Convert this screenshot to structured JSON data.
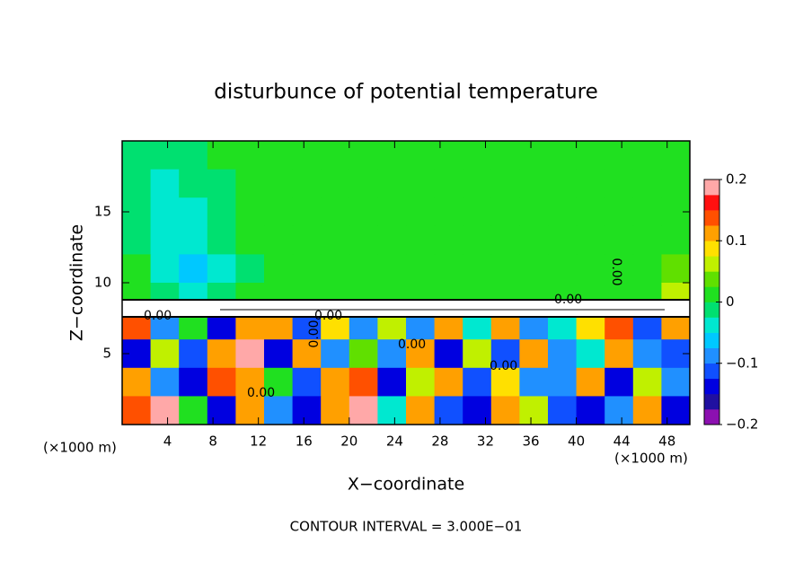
{
  "chart_data": {
    "type": "contour",
    "title": "disturbunce of potential temperature",
    "xlabel": "X−coordinate",
    "ylabel": "Z−coordinate",
    "xunit_left": "(×1000 m)",
    "xunit_right": "(×1000 m)",
    "footer": "CONTOUR INTERVAL = 3.000E−01",
    "annotations": [
      "0.00",
      "0.00",
      "0.00",
      "0.00",
      "0.00",
      "0.00",
      "0.00",
      "0.00"
    ],
    "xlim": [
      0,
      50
    ],
    "ylim": [
      0,
      20
    ],
    "xticks": [
      4,
      8,
      12,
      16,
      20,
      24,
      28,
      32,
      36,
      40,
      44,
      48
    ],
    "yticks": [
      5,
      10,
      15
    ],
    "clim": [
      -0.2,
      0.2
    ],
    "cticks": [
      {
        "value": 0.2,
        "label": "0.2"
      },
      {
        "value": 0.1,
        "label": "0.1"
      },
      0,
      {
        "value": -0.1,
        "label": "−0.1"
      },
      {
        "value": -0.2,
        "label": "−0.2"
      }
    ],
    "colors": [
      "#8c10b0",
      "#2010a0",
      "#0000e0",
      "#1050ff",
      "#2090ff",
      "#00c8ff",
      "#00e8d0",
      "#00e070",
      "#20e020",
      "#60e000",
      "#c0f000",
      "#ffe000",
      "#ffa000",
      "#ff5000",
      "#ff1010",
      "#ffa8a8"
    ],
    "z": [
      [
        -0.01,
        -0.02,
        -0.01,
        0,
        0,
        0,
        0.01,
        0.01,
        0.01,
        0.01,
        0.01,
        0.015,
        0.01,
        0.01,
        0.01,
        0.01,
        0.01,
        0.01,
        0.01,
        0.01
      ],
      [
        -0.02,
        -0.03,
        -0.02,
        -0.01,
        0,
        0,
        0.01,
        0.01,
        0.01,
        0.01,
        0.015,
        0.015,
        0.01,
        0.01,
        0.01,
        0.01,
        0.01,
        0.01,
        0.01,
        0.01
      ],
      [
        -0.02,
        -0.03,
        -0.03,
        -0.02,
        0,
        0,
        0.01,
        0.01,
        0.01,
        0.01,
        0.015,
        0.02,
        0.015,
        0.01,
        0.01,
        0.01,
        0.01,
        0.01,
        0.015,
        0.01
      ],
      [
        -0.01,
        -0.03,
        -0.03,
        -0.02,
        0,
        0,
        0,
        0.01,
        0.01,
        0.01,
        0.015,
        0.02,
        0.015,
        0.01,
        0.01,
        0.01,
        0.01,
        0,
        0.02,
        0.01
      ],
      [
        0,
        -0.03,
        -0.06,
        -0.03,
        -0.01,
        0,
        0,
        0.01,
        0.01,
        0.01,
        0.01,
        0.02,
        0.015,
        0.01,
        0.01,
        0.01,
        0,
        0,
        0.02,
        0.03
      ],
      [
        0,
        -0.02,
        -0.05,
        -0.02,
        0,
        0,
        0,
        0.01,
        0.01,
        0.01,
        0.01,
        0.01,
        0.01,
        0.01,
        0.01,
        0.01,
        0,
        0,
        0.01,
        0.05
      ],
      [
        0.15,
        -0.1,
        0.02,
        -0.15,
        0.12,
        0.1,
        -0.12,
        0.08,
        -0.1,
        0.05,
        -0.08,
        0.1,
        -0.05,
        0.12,
        -0.1,
        -0.05,
        0.08,
        0.15,
        -0.12,
        0.1
      ],
      [
        -0.15,
        0.05,
        -0.12,
        0.1,
        0.18,
        -0.15,
        0.12,
        -0.1,
        0.03,
        -0.08,
        0.12,
        -0.15,
        0.05,
        -0.12,
        0.1,
        -0.1,
        -0.05,
        0.12,
        -0.1,
        -0.12
      ],
      [
        0.1,
        -0.1,
        -0.15,
        0.15,
        0.12,
        0.02,
        -0.12,
        0.1,
        0.15,
        -0.15,
        0.05,
        0.1,
        -0.12,
        0.08,
        -0.1,
        -0.08,
        0.1,
        -0.15,
        0.05,
        -0.1
      ],
      [
        0.15,
        0.18,
        0.02,
        -0.15,
        0.12,
        -0.1,
        -0.15,
        0.12,
        0.18,
        -0.05,
        0.1,
        -0.12,
        -0.15,
        0.1,
        0.05,
        -0.12,
        -0.15,
        -0.1,
        0.1,
        -0.15
      ]
    ]
  }
}
